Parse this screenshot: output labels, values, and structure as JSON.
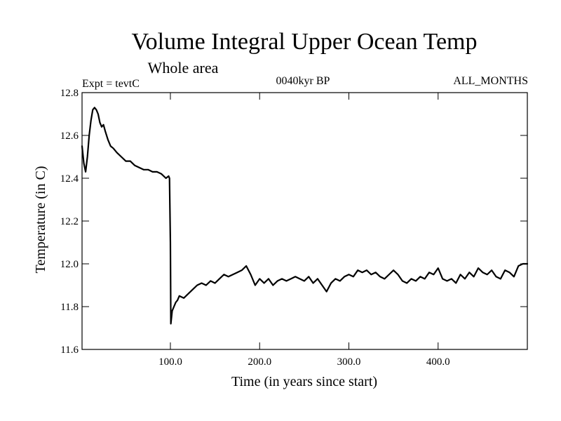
{
  "chart_data": {
    "type": "line",
    "title": "Volume Integral Upper Ocean Temp",
    "subtitle": "Whole area",
    "experiment_label": "Expt = tevtC",
    "period_label": "0040kyr BP",
    "months_label": "ALL_MONTHS",
    "xlabel": "Time (in years since start)",
    "ylabel": "Temperature (in C)",
    "xlim": [
      1,
      500
    ],
    "ylim": [
      11.6,
      12.8
    ],
    "x_ticks": [
      {
        "value": 100,
        "label": "100.0"
      },
      {
        "value": 200,
        "label": "200.0"
      },
      {
        "value": 300,
        "label": "300.0"
      },
      {
        "value": 400,
        "label": "400.0"
      }
    ],
    "y_ticks": [
      {
        "value": 11.6,
        "label": "11.6"
      },
      {
        "value": 11.8,
        "label": "11.8"
      },
      {
        "value": 12.0,
        "label": "12.0"
      },
      {
        "value": 12.2,
        "label": "12.2"
      },
      {
        "value": 12.4,
        "label": "12.4"
      },
      {
        "value": 12.6,
        "label": "12.6"
      },
      {
        "value": 12.8,
        "label": "12.8"
      }
    ],
    "grid": false,
    "line_color": "#000000",
    "series": [
      {
        "x": [
          1,
          3,
          5,
          7,
          9,
          11,
          13,
          15,
          17,
          19,
          21,
          23,
          25,
          27,
          30,
          33,
          36,
          40,
          45,
          50,
          55,
          60,
          65,
          70,
          75,
          80,
          85,
          90,
          95,
          98,
          99,
          100,
          100.5,
          101,
          102,
          104,
          106,
          108,
          110,
          115,
          120,
          125,
          130,
          135,
          140,
          145,
          150,
          155,
          160,
          165,
          170,
          175,
          180,
          185,
          190,
          195,
          200,
          205,
          210,
          215,
          220,
          225,
          230,
          235,
          240,
          245,
          250,
          255,
          260,
          265,
          270,
          275,
          280,
          285,
          290,
          295,
          300,
          305,
          310,
          315,
          320,
          325,
          330,
          335,
          340,
          345,
          350,
          355,
          360,
          365,
          370,
          375,
          380,
          385,
          390,
          395,
          400,
          405,
          410,
          415,
          420,
          425,
          430,
          435,
          440,
          445,
          450,
          455,
          460,
          465,
          470,
          475,
          480,
          485,
          490,
          495,
          500
        ],
        "values": [
          12.55,
          12.47,
          12.43,
          12.5,
          12.6,
          12.67,
          12.72,
          12.73,
          12.72,
          12.7,
          12.66,
          12.64,
          12.65,
          12.62,
          12.58,
          12.55,
          12.54,
          12.52,
          12.5,
          12.48,
          12.48,
          12.46,
          12.45,
          12.44,
          12.44,
          12.43,
          12.43,
          12.42,
          12.4,
          12.41,
          12.4,
          12.1,
          11.72,
          11.74,
          11.78,
          11.8,
          11.82,
          11.83,
          11.85,
          11.84,
          11.86,
          11.88,
          11.9,
          11.91,
          11.9,
          11.92,
          11.91,
          11.93,
          11.95,
          11.94,
          11.95,
          11.96,
          11.97,
          11.99,
          11.95,
          11.9,
          11.93,
          11.91,
          11.93,
          11.9,
          11.92,
          11.93,
          11.92,
          11.93,
          11.94,
          11.93,
          11.92,
          11.94,
          11.91,
          11.93,
          11.9,
          11.87,
          11.91,
          11.93,
          11.92,
          11.94,
          11.95,
          11.94,
          11.97,
          11.96,
          11.97,
          11.95,
          11.96,
          11.94,
          11.93,
          11.95,
          11.97,
          11.95,
          11.92,
          11.91,
          11.93,
          11.92,
          11.94,
          11.93,
          11.96,
          11.95,
          11.98,
          11.93,
          11.92,
          11.93,
          11.91,
          11.95,
          11.93,
          11.96,
          11.94,
          11.98,
          11.96,
          11.95,
          11.97,
          11.94,
          11.93,
          11.97,
          11.96,
          11.94,
          11.99,
          12.0,
          12.0
        ]
      }
    ]
  }
}
